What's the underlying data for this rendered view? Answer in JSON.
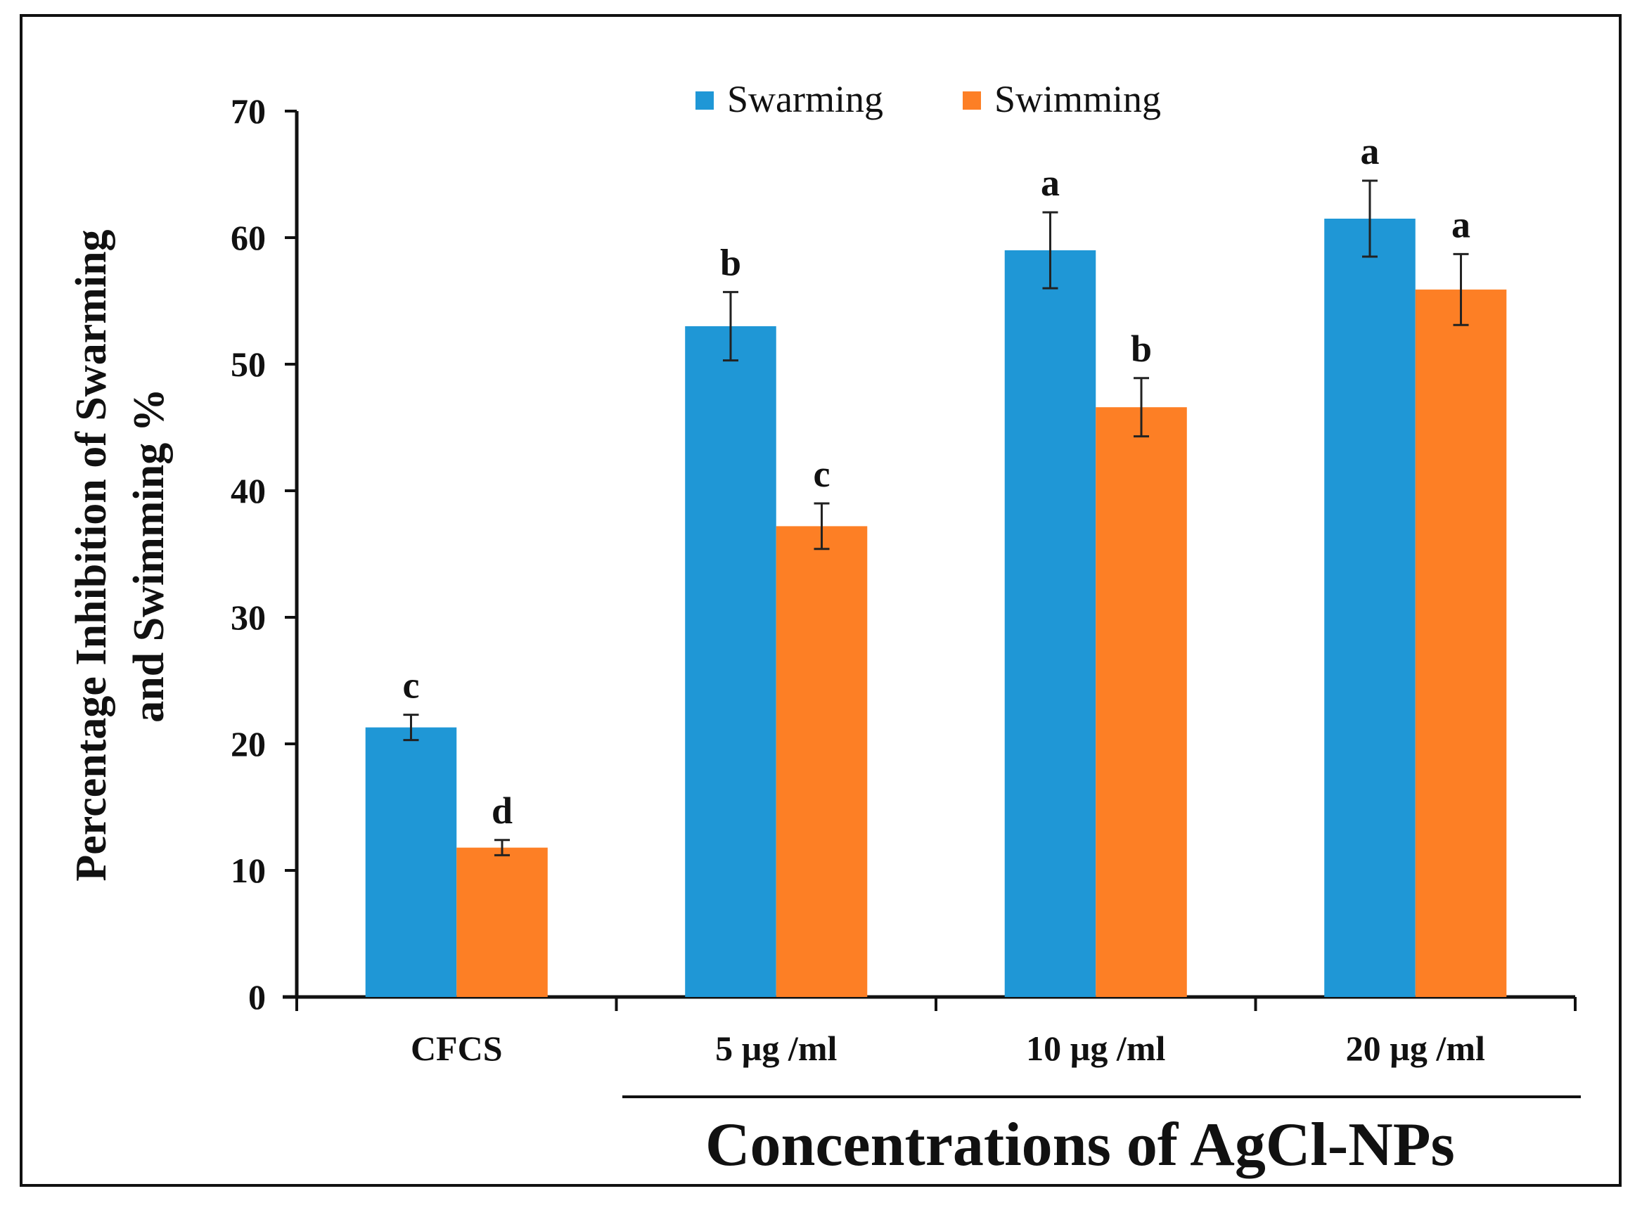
{
  "chart_data": {
    "type": "bar",
    "title": "",
    "ylabel_line1": "Percentage Inhibition of Swarming",
    "ylabel_line2": "and Swimming %",
    "xlabel": "Concentrations of AgCl-NPs",
    "ylim": [
      0,
      70
    ],
    "yticks": [
      0,
      10,
      20,
      30,
      40,
      50,
      60,
      70
    ],
    "categories": [
      "CFCS",
      "5 µg /ml",
      "10 µg /ml",
      "20 µg /ml"
    ],
    "legend_position": "top-center",
    "series": [
      {
        "name": "Swarming",
        "color": "#1f97d6",
        "values": [
          21.3,
          53.0,
          59.0,
          61.5
        ],
        "errors": [
          1.0,
          2.7,
          3.0,
          3.0
        ],
        "letters": [
          "c",
          "b",
          "a",
          "a"
        ]
      },
      {
        "name": "Swimming",
        "color": "#fd7f25",
        "values": [
          11.8,
          37.2,
          46.6,
          55.9
        ],
        "errors": [
          0.6,
          1.8,
          2.3,
          2.8
        ],
        "letters": [
          "d",
          "c",
          "b",
          "a"
        ]
      }
    ]
  }
}
